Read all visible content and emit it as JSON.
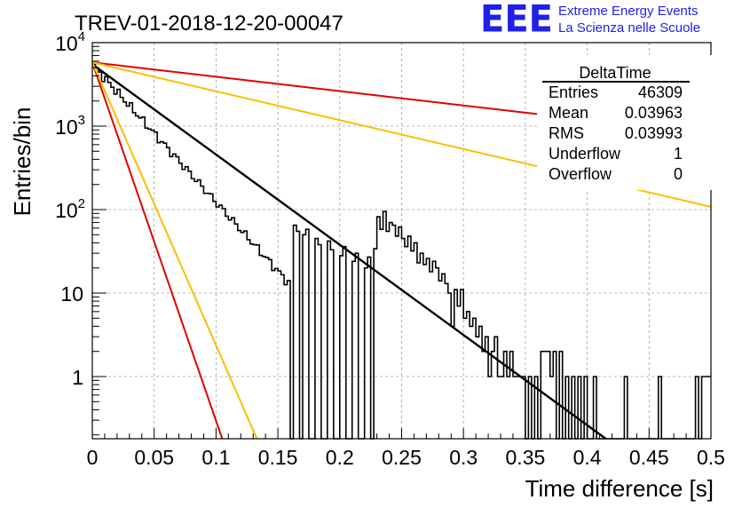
{
  "chart_data": {
    "type": "histogram",
    "title": "TREV-01-2018-12-20-00047",
    "xlabel": "Time difference [s]",
    "ylabel": "Entries/bin",
    "xlim": [
      0,
      0.5
    ],
    "ylim": [
      0.18,
      10000
    ],
    "yscale": "log",
    "grid": true,
    "x_ticks": [
      0,
      0.05,
      0.1,
      0.15,
      0.2,
      0.25,
      0.3,
      0.35,
      0.4,
      0.45,
      0.5
    ],
    "x_tick_labels": [
      "0",
      "0.05",
      "0.1",
      "0.15",
      "0.2",
      "0.25",
      "0.3",
      "0.35",
      "0.4",
      "0.45",
      "0.5"
    ],
    "y_ticks": [
      1,
      10,
      100,
      1000,
      10000
    ],
    "y_tick_labels": [
      "1",
      "10",
      "10^2",
      "10^3",
      "10^4"
    ],
    "histogram": {
      "name": "DeltaTime",
      "bin_width": 0.0025,
      "decay_start": 5500,
      "decay_rate_per_s": 38,
      "tail_bins": [
        {
          "x": 0.1625,
          "y": 65
        },
        {
          "x": 0.165,
          "y": 55
        },
        {
          "x": 0.17,
          "y": 50
        },
        {
          "x": 0.1725,
          "y": 58
        },
        {
          "x": 0.18,
          "y": 45
        },
        {
          "x": 0.1825,
          "y": 38
        },
        {
          "x": 0.19,
          "y": 42
        },
        {
          "x": 0.1925,
          "y": 33
        },
        {
          "x": 0.2,
          "y": 28
        },
        {
          "x": 0.2025,
          "y": 36
        },
        {
          "x": 0.21,
          "y": 24
        },
        {
          "x": 0.2125,
          "y": 30
        },
        {
          "x": 0.22,
          "y": 20
        },
        {
          "x": 0.2225,
          "y": 27
        },
        {
          "x": 0.2275,
          "y": 34
        },
        {
          "x": 0.23,
          "y": 82
        },
        {
          "x": 0.2325,
          "y": 58
        },
        {
          "x": 0.235,
          "y": 95
        },
        {
          "x": 0.2375,
          "y": 55
        },
        {
          "x": 0.24,
          "y": 70
        },
        {
          "x": 0.2425,
          "y": 65
        },
        {
          "x": 0.245,
          "y": 48
        },
        {
          "x": 0.2475,
          "y": 62
        },
        {
          "x": 0.25,
          "y": 45
        },
        {
          "x": 0.2525,
          "y": 36
        },
        {
          "x": 0.255,
          "y": 48
        },
        {
          "x": 0.2575,
          "y": 32
        },
        {
          "x": 0.26,
          "y": 40
        },
        {
          "x": 0.2625,
          "y": 23
        },
        {
          "x": 0.265,
          "y": 30
        },
        {
          "x": 0.2675,
          "y": 22
        },
        {
          "x": 0.27,
          "y": 26
        },
        {
          "x": 0.2725,
          "y": 18
        },
        {
          "x": 0.275,
          "y": 24
        },
        {
          "x": 0.2775,
          "y": 20
        },
        {
          "x": 0.28,
          "y": 14
        },
        {
          "x": 0.2825,
          "y": 17
        },
        {
          "x": 0.285,
          "y": 13
        },
        {
          "x": 0.2875,
          "y": 10
        },
        {
          "x": 0.29,
          "y": 4
        },
        {
          "x": 0.2925,
          "y": 11
        },
        {
          "x": 0.295,
          "y": 7
        },
        {
          "x": 0.2975,
          "y": 11
        },
        {
          "x": 0.3,
          "y": 5
        },
        {
          "x": 0.3025,
          "y": 6
        },
        {
          "x": 0.305,
          "y": 4
        },
        {
          "x": 0.3075,
          "y": 5
        },
        {
          "x": 0.31,
          "y": 3
        },
        {
          "x": 0.3125,
          "y": 4
        },
        {
          "x": 0.315,
          "y": 2
        },
        {
          "x": 0.3175,
          "y": 3
        },
        {
          "x": 0.32,
          "y": 1
        },
        {
          "x": 0.3225,
          "y": 2
        },
        {
          "x": 0.325,
          "y": 3
        },
        {
          "x": 0.3275,
          "y": 1
        },
        {
          "x": 0.33,
          "y": 1
        },
        {
          "x": 0.3325,
          "y": 2
        },
        {
          "x": 0.335,
          "y": 1
        },
        {
          "x": 0.3375,
          "y": 2
        },
        {
          "x": 0.34,
          "y": 1
        },
        {
          "x": 0.3425,
          "y": 1
        },
        {
          "x": 0.345,
          "y": 1
        },
        {
          "x": 0.3475,
          "y": 1
        },
        {
          "x": 0.35,
          "y": 0
        },
        {
          "x": 0.3525,
          "y": 1
        },
        {
          "x": 0.355,
          "y": 0
        },
        {
          "x": 0.3575,
          "y": 1
        },
        {
          "x": 0.36,
          "y": 0
        },
        {
          "x": 0.3625,
          "y": 2
        },
        {
          "x": 0.365,
          "y": 2
        },
        {
          "x": 0.3675,
          "y": 2
        },
        {
          "x": 0.37,
          "y": 1
        },
        {
          "x": 0.3725,
          "y": 2
        },
        {
          "x": 0.375,
          "y": 0
        },
        {
          "x": 0.3775,
          "y": 2
        },
        {
          "x": 0.38,
          "y": 0
        },
        {
          "x": 0.3825,
          "y": 1
        },
        {
          "x": 0.385,
          "y": 0
        },
        {
          "x": 0.3875,
          "y": 1
        },
        {
          "x": 0.39,
          "y": 0
        },
        {
          "x": 0.3925,
          "y": 1
        },
        {
          "x": 0.395,
          "y": 0
        },
        {
          "x": 0.3975,
          "y": 1
        },
        {
          "x": 0.4,
          "y": 0
        },
        {
          "x": 0.4025,
          "y": 0
        },
        {
          "x": 0.405,
          "y": 1
        },
        {
          "x": 0.4075,
          "y": 0
        },
        {
          "x": 0.41,
          "y": 0
        },
        {
          "x": 0.4125,
          "y": 0
        },
        {
          "x": 0.415,
          "y": 0
        },
        {
          "x": 0.4175,
          "y": 0
        },
        {
          "x": 0.42,
          "y": 0
        },
        {
          "x": 0.4225,
          "y": 0
        },
        {
          "x": 0.425,
          "y": 0
        },
        {
          "x": 0.4275,
          "y": 0
        },
        {
          "x": 0.43,
          "y": 1
        },
        {
          "x": 0.4325,
          "y": 0
        },
        {
          "x": 0.435,
          "y": 0
        },
        {
          "x": 0.4375,
          "y": 0
        },
        {
          "x": 0.44,
          "y": 0
        },
        {
          "x": 0.4425,
          "y": 0
        },
        {
          "x": 0.445,
          "y": 0
        },
        {
          "x": 0.4475,
          "y": 0
        },
        {
          "x": 0.45,
          "y": 0
        },
        {
          "x": 0.4525,
          "y": 0
        },
        {
          "x": 0.455,
          "y": 0
        },
        {
          "x": 0.4575,
          "y": 1
        },
        {
          "x": 0.46,
          "y": 0
        },
        {
          "x": 0.4625,
          "y": 0
        },
        {
          "x": 0.465,
          "y": 0
        },
        {
          "x": 0.4675,
          "y": 0
        },
        {
          "x": 0.47,
          "y": 0
        },
        {
          "x": 0.4725,
          "y": 0
        },
        {
          "x": 0.475,
          "y": 0
        },
        {
          "x": 0.4775,
          "y": 0
        },
        {
          "x": 0.48,
          "y": 0
        },
        {
          "x": 0.4825,
          "y": 0
        },
        {
          "x": 0.485,
          "y": 0
        },
        {
          "x": 0.4875,
          "y": 1
        },
        {
          "x": 0.49,
          "y": 0
        },
        {
          "x": 0.4925,
          "y": 1
        },
        {
          "x": 0.495,
          "y": 1
        },
        {
          "x": 0.4975,
          "y": 1
        }
      ]
    },
    "curves": [
      {
        "color": "#000000",
        "points": [
          [
            0.0,
            5500
          ],
          [
            0.415,
            0.18
          ]
        ]
      },
      {
        "color": "#e00000",
        "points": [
          [
            0.0,
            5800
          ],
          [
            0.5,
            800
          ]
        ]
      },
      {
        "color": "#e00000",
        "points": [
          [
            0.0,
            5800
          ],
          [
            0.105,
            0.18
          ]
        ]
      },
      {
        "color": "#f5c000",
        "points": [
          [
            0.0,
            5800
          ],
          [
            0.5,
            108
          ]
        ]
      },
      {
        "color": "#f5c000",
        "points": [
          [
            0.0,
            5800
          ],
          [
            0.133,
            0.18
          ]
        ]
      }
    ],
    "stats_box": {
      "title": "DeltaTime",
      "rows": [
        {
          "label": "Entries",
          "value": "46309"
        },
        {
          "label": "Mean",
          "value": "0.03963"
        },
        {
          "label": "RMS",
          "value": "0.03993"
        },
        {
          "label": "Underflow",
          "value": "1"
        },
        {
          "label": "Overflow",
          "value": "0"
        }
      ]
    }
  },
  "logo": {
    "mark": "EEE",
    "line1": "Extreme Energy Events",
    "line2": "La Scienza nelle Scuole"
  }
}
